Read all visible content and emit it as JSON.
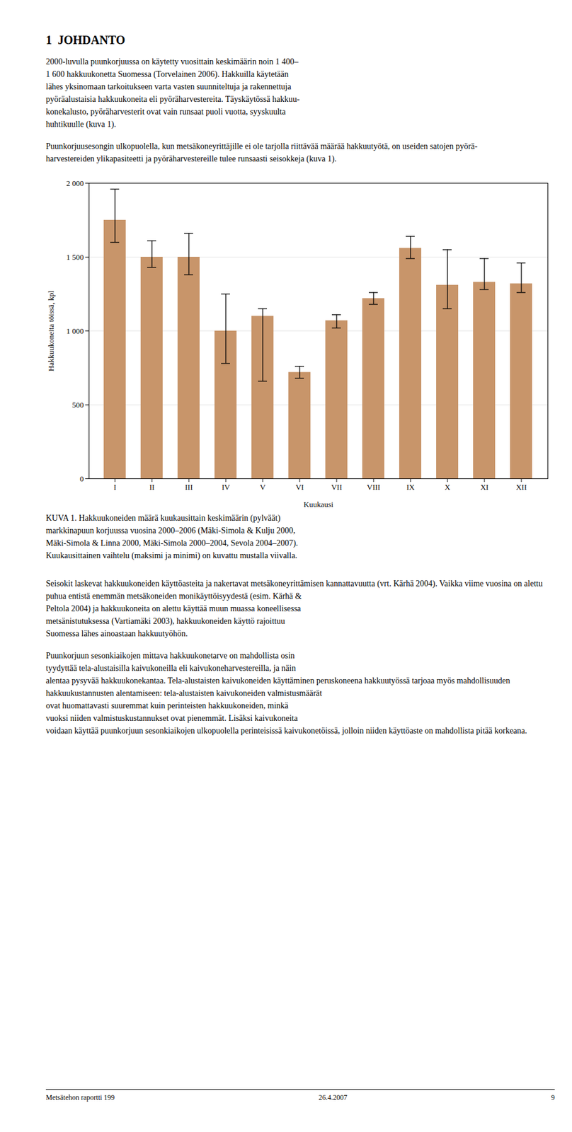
{
  "page": {
    "heading": "1  JOHDANTO",
    "paragraphs_before": [
      "2000-luvulla puunkorjuussa on käytetty vuosittain keskimäärin noin 1 400–\n1 600 hakkuukonetta Suomessa (Torvelainen 2006). Hakkuilla käytetään\nlähes yksinomaan tarkoitukseen varta vasten suunniteltuja ja rakennettuja\npyöräalustaisia hakkuukoneita eli pyöräharvestereita. Täyskäytössä hakkuu-\nkonekalusto, pyöräharvesterit ovat vain runsaat puoli vuotta, syyskuulta\nhuhtikuulle (kuva 1).",
      "Puunkorjuusesongin ulkopuolella, kun metsäkoneyrittäjille ei ole tarjolla riittävää määrää hakkuutyötä, on useiden satojen pyörä-\nharvestereiden ylikapasiteetti ja pyöräharvestereille tulee runsaasti seisokkeja (kuva 1)."
    ],
    "paragraphs_after": [
      "Seisokit laskevat hakkuukoneiden käyttöasteita ja nakertavat metsäkoneyrittämisen kannattavuutta (vrt. Kärhä 2004). Vaikka viime vuosina on alettu\npuhua entistä enemmän metsäkoneiden monikäyttöisyydestä (esim. Kärhä &\nPeltola 2004) ja hakkuukoneita on alettu käyttää muun muassa koneellisessa\nmetsänistutuksessa (Vartiamäki 2003), hakkuukoneiden käyttö rajoittuu\nSuomessa lähes ainoastaan hakkuutyöhön.",
      "Puunkorjuun sesonkiaikojen mittava hakkuukonetarve on mahdollista osin\ntyydyttää tela-alustaisilla kaivukoneilla eli kaivukoneharvestereilla, ja näin\nalentaa pysyvää hakkuukonekantaa. Tela-alustaisten kaivukoneiden käyttäminen peruskoneena hakkuutyössä tarjoaa myös mahdollisuuden hakkuukustannusten alentamiseen: tela-alustaisten kaivukoneiden valmistusmäärät\novat huomattavasti suuremmat kuin perinteisten hakkuukoneiden, minkä\nvuoksi niiden valmistuskustannukset ovat pienemmät. Lisäksi kaivukoneita\nvoidaan käyttää puunkorjuun sesonkiaikojen ulkopuolella perinteisissä kaivukonetöissä, jolloin niiden käyttöaste on mahdollista pitää korkeana."
    ],
    "footer": [
      "Metsätehon raportti 199",
      "26.4.2007",
      "9"
    ]
  },
  "chart_data": {
    "type": "bar",
    "caption": "KUVA 1. Hakkuukoneiden määrä kuukausittain keskimäärin (pylväät)\nmarkkinapuun korjuussa vuosina 2000–2006 (Mäki-Simola & Kulju 2000,\nMäki-Simola & Linna 2000, Mäki-Simola 2000–2004, Sevola 2004–2007).\nKuukausittainen vaihtelu (maksimi ja minimi) on kuvattu mustalla viivalla.",
    "xlabel": "Kuukausi",
    "ylabel": "Hakkuukoneita töissä, kpl",
    "categories": [
      "I",
      "II",
      "III",
      "IV",
      "V",
      "VI",
      "VII",
      "VIII",
      "IX",
      "X",
      "XI",
      "XII"
    ],
    "values": [
      1750,
      1500,
      1500,
      1000,
      1100,
      720,
      1070,
      1220,
      1560,
      1310,
      1330,
      1320
    ],
    "error_upper": [
      1960,
      1610,
      1660,
      1250,
      1150,
      760,
      1110,
      1260,
      1640,
      1550,
      1490,
      1460
    ],
    "error_lower": [
      1600,
      1430,
      1380,
      780,
      660,
      680,
      1020,
      1180,
      1490,
      1150,
      1280,
      1260
    ],
    "color": "#C8956A",
    "ylim": [
      0,
      2000
    ],
    "yticks": [
      0,
      500,
      {
        "value": 1000,
        "label": "1 000"
      },
      {
        "value": 1500,
        "label": "1 500"
      },
      {
        "value": 2000,
        "label": "2 000"
      }
    ],
    "grid": true
  }
}
